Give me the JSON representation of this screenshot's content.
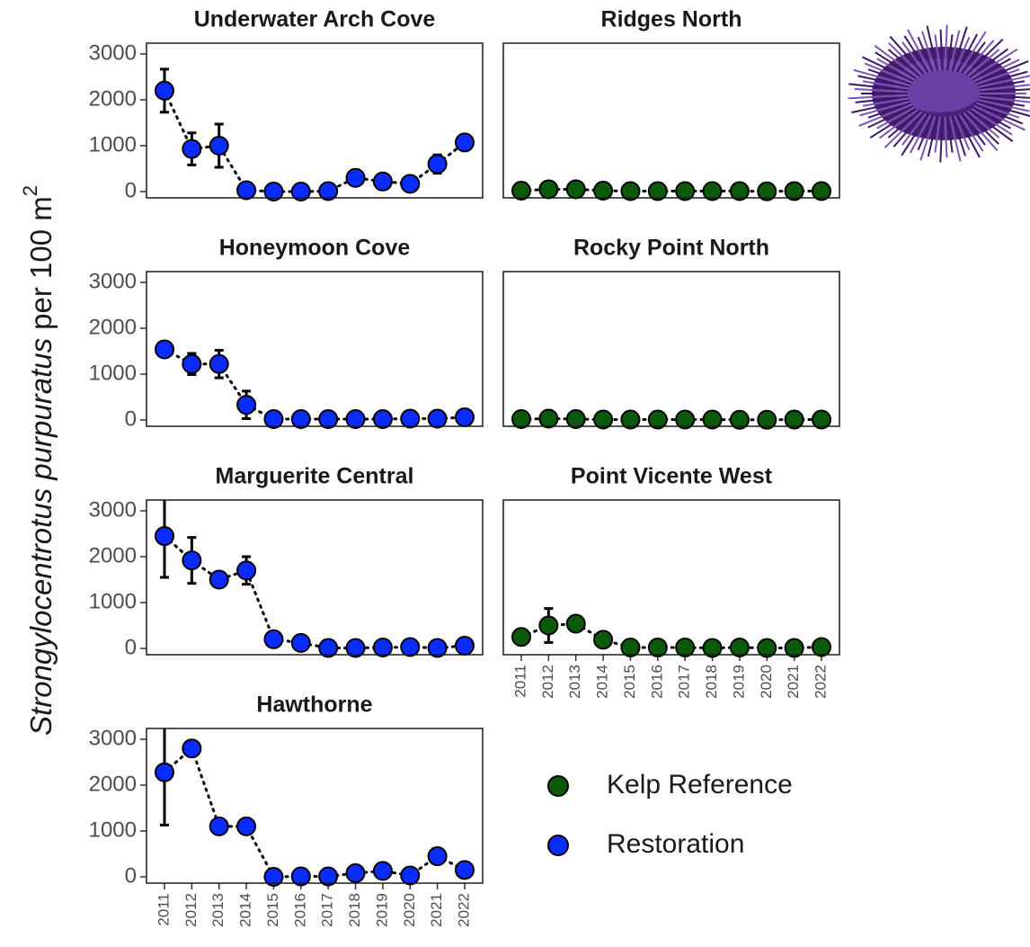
{
  "ylabel": {
    "italic": "Strongylocentrotus purpuratus",
    "text": "per 100 m",
    "superscript": "2"
  },
  "chart_data": [
    {
      "type": "line",
      "title": "Underwater Arch Cove",
      "x": [
        "2011",
        "2012",
        "2013",
        "2014",
        "2015",
        "2016",
        "2017",
        "2018",
        "2019",
        "2020",
        "2021",
        "2022"
      ],
      "show_x_labels": false,
      "show_y_labels": true,
      "ylim": [
        -137,
        3235
      ],
      "yticks": [
        0,
        1000,
        2000,
        3000
      ],
      "series": [
        {
          "name": "Restoration",
          "color": "#0a2cff",
          "values": [
            2200,
            930,
            1000,
            30,
            0,
            0,
            10,
            300,
            220,
            170,
            600,
            1070
          ],
          "errors": [
            470,
            350,
            470,
            null,
            null,
            null,
            null,
            null,
            null,
            null,
            200,
            null
          ]
        }
      ]
    },
    {
      "type": "line",
      "title": "Ridges North",
      "x": [
        "2011",
        "2012",
        "2013",
        "2014",
        "2015",
        "2016",
        "2017",
        "2018",
        "2019",
        "2020",
        "2021",
        "2022"
      ],
      "show_x_labels": false,
      "show_y_labels": false,
      "ylim": [
        -137,
        3235
      ],
      "yticks": [
        0,
        1000,
        2000,
        3000
      ],
      "series": [
        {
          "name": "Kelp Reference",
          "color": "#0b5a0b",
          "values": [
            20,
            50,
            50,
            20,
            10,
            10,
            10,
            10,
            10,
            5,
            10,
            10
          ],
          "errors": [
            null,
            null,
            null,
            null,
            null,
            null,
            null,
            null,
            null,
            null,
            null,
            null
          ]
        }
      ]
    },
    {
      "type": "line",
      "title": "Honeymoon Cove",
      "x": [
        "2011",
        "2012",
        "2013",
        "2014",
        "2015",
        "2016",
        "2017",
        "2018",
        "2019",
        "2020",
        "2021",
        "2022"
      ],
      "show_x_labels": false,
      "show_y_labels": true,
      "ylim": [
        -137,
        3235
      ],
      "yticks": [
        0,
        1000,
        2000,
        3000
      ],
      "series": [
        {
          "name": "Restoration",
          "color": "#0a2cff",
          "values": [
            1540,
            1220,
            1220,
            330,
            20,
            20,
            20,
            20,
            20,
            30,
            30,
            60
          ],
          "errors": [
            null,
            230,
            300,
            300,
            null,
            null,
            null,
            null,
            null,
            null,
            null,
            null
          ]
        }
      ]
    },
    {
      "type": "line",
      "title": "Rocky Point North",
      "x": [
        "2011",
        "2012",
        "2013",
        "2014",
        "2015",
        "2016",
        "2017",
        "2018",
        "2019",
        "2020",
        "2021",
        "2022"
      ],
      "show_x_labels": false,
      "show_y_labels": false,
      "ylim": [
        -137,
        3235
      ],
      "yticks": [
        0,
        1000,
        2000,
        3000
      ],
      "series": [
        {
          "name": "Kelp Reference",
          "color": "#0b5a0b",
          "values": [
            20,
            30,
            20,
            10,
            10,
            10,
            10,
            10,
            5,
            5,
            10,
            10
          ],
          "errors": [
            null,
            null,
            null,
            null,
            null,
            null,
            null,
            null,
            null,
            null,
            null,
            null
          ]
        }
      ]
    },
    {
      "type": "line",
      "title": "Marguerite Central",
      "x": [
        "2011",
        "2012",
        "2013",
        "2014",
        "2015",
        "2016",
        "2017",
        "2018",
        "2019",
        "2020",
        "2021",
        "2022"
      ],
      "show_x_labels": false,
      "show_y_labels": true,
      "ylim": [
        -137,
        3235
      ],
      "yticks": [
        0,
        1000,
        2000,
        3000
      ],
      "series": [
        {
          "name": "Restoration",
          "color": "#0a2cff",
          "values": [
            2450,
            1920,
            1500,
            1700,
            200,
            120,
            10,
            10,
            20,
            30,
            10,
            60
          ],
          "errors": [
            900,
            500,
            null,
            300,
            null,
            null,
            null,
            null,
            null,
            null,
            null,
            null
          ]
        }
      ]
    },
    {
      "type": "line",
      "title": "Point Vicente West",
      "x": [
        "2011",
        "2012",
        "2013",
        "2014",
        "2015",
        "2016",
        "2017",
        "2018",
        "2019",
        "2020",
        "2021",
        "2022"
      ],
      "show_x_labels": true,
      "show_y_labels": false,
      "ylim": [
        -137,
        3235
      ],
      "yticks": [
        0,
        1000,
        2000,
        3000
      ],
      "series": [
        {
          "name": "Kelp Reference",
          "color": "#0b5a0b",
          "values": [
            250,
            500,
            540,
            190,
            20,
            20,
            20,
            10,
            20,
            10,
            10,
            30
          ],
          "errors": [
            null,
            370,
            null,
            null,
            null,
            null,
            null,
            null,
            null,
            null,
            null,
            null
          ]
        }
      ]
    },
    {
      "type": "line",
      "title": "Hawthorne",
      "x": [
        "2011",
        "2012",
        "2013",
        "2014",
        "2015",
        "2016",
        "2017",
        "2018",
        "2019",
        "2020",
        "2021",
        "2022"
      ],
      "show_x_labels": true,
      "show_y_labels": true,
      "ylim": [
        -137,
        3235
      ],
      "yticks": [
        0,
        1000,
        2000,
        3000
      ],
      "series": [
        {
          "name": "Restoration",
          "color": "#0a2cff",
          "values": [
            2280,
            2800,
            1100,
            1100,
            0,
            10,
            10,
            80,
            130,
            30,
            450,
            150
          ],
          "errors": [
            1150,
            null,
            null,
            null,
            null,
            null,
            null,
            null,
            null,
            null,
            null,
            null
          ]
        }
      ]
    }
  ]
}
